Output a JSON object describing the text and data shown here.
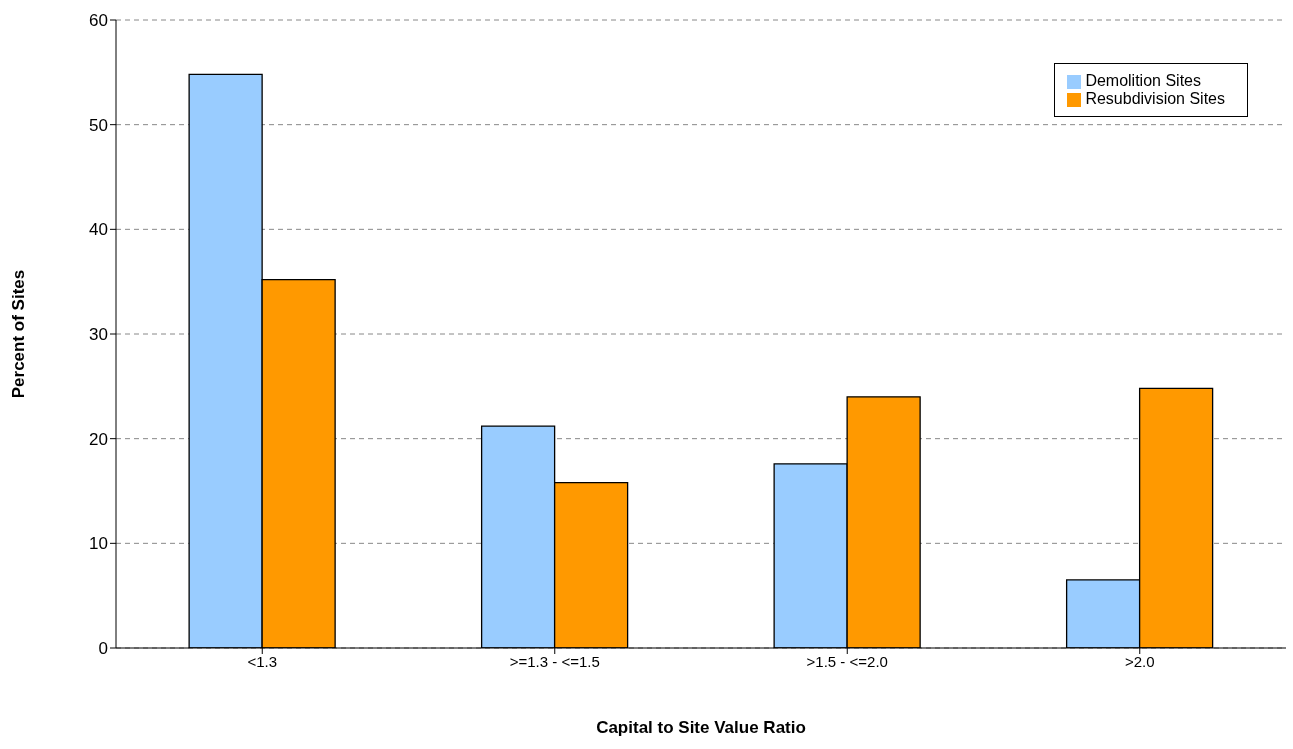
{
  "chart_data": {
    "type": "bar",
    "xlabel": "Capital to Site Value Ratio",
    "ylabel": "Percent of Sites",
    "categories": [
      "<1.3",
      ">=1.3 - <=1.5",
      ">1.5 - <=2.0",
      ">2.0"
    ],
    "series": [
      {
        "name": "Demolition Sites",
        "color": "#99ccff",
        "values": [
          54.8,
          21.2,
          17.6,
          6.5
        ]
      },
      {
        "name": "Resubdivision Sites",
        "color": "#ff9900",
        "values": [
          35.2,
          15.8,
          24.0,
          24.8
        ]
      }
    ],
    "ylim": [
      0,
      60
    ],
    "yticks": [
      0,
      10,
      20,
      30,
      40,
      50,
      60
    ],
    "grid": "y",
    "legend": "top right"
  }
}
